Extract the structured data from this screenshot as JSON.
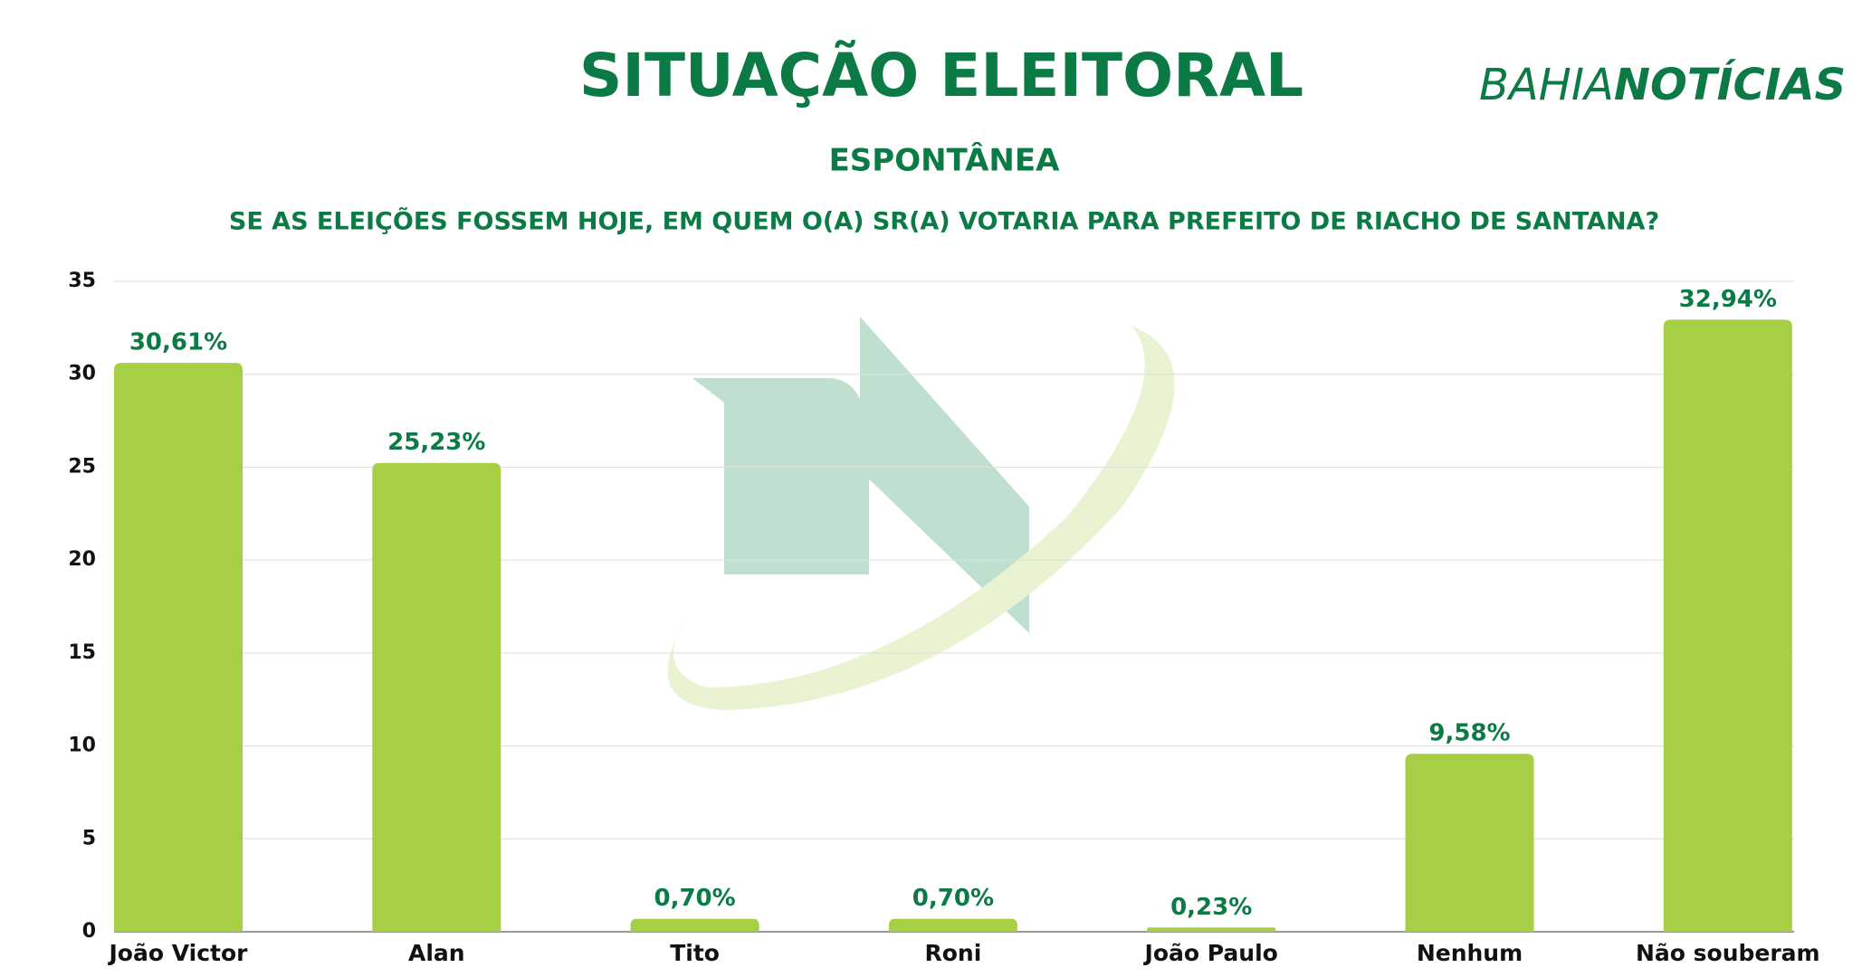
{
  "chart_data": {
    "type": "bar",
    "title": "SITUAÇÃO ELEITORAL",
    "subtitle": "ESPONTÂNEA",
    "question": "SE AS ELEIÇÕES FOSSEM HOJE, EM QUEM O(A) SR(A) VOTARIA PARA PREFEITO DE RIACHO DE SANTANA?",
    "brand": {
      "light": "BAHIA",
      "bold": "NOTÍCIAS"
    },
    "categories": [
      "João Victor",
      "Alan",
      "Tito",
      "Roni",
      "João Paulo",
      "Nenhum",
      "Não souberam"
    ],
    "values": [
      30.61,
      25.23,
      0.7,
      0.7,
      0.23,
      9.58,
      32.94
    ],
    "value_labels": [
      "30,61%",
      "25,23%",
      "0,70%",
      "0,70%",
      "0,23%",
      "9,58%",
      "32,94%"
    ],
    "color": "#a6cf45",
    "ylim": [
      0,
      35
    ],
    "yticks": [
      0,
      5,
      10,
      15,
      20,
      25,
      30,
      35
    ],
    "grid": true
  }
}
